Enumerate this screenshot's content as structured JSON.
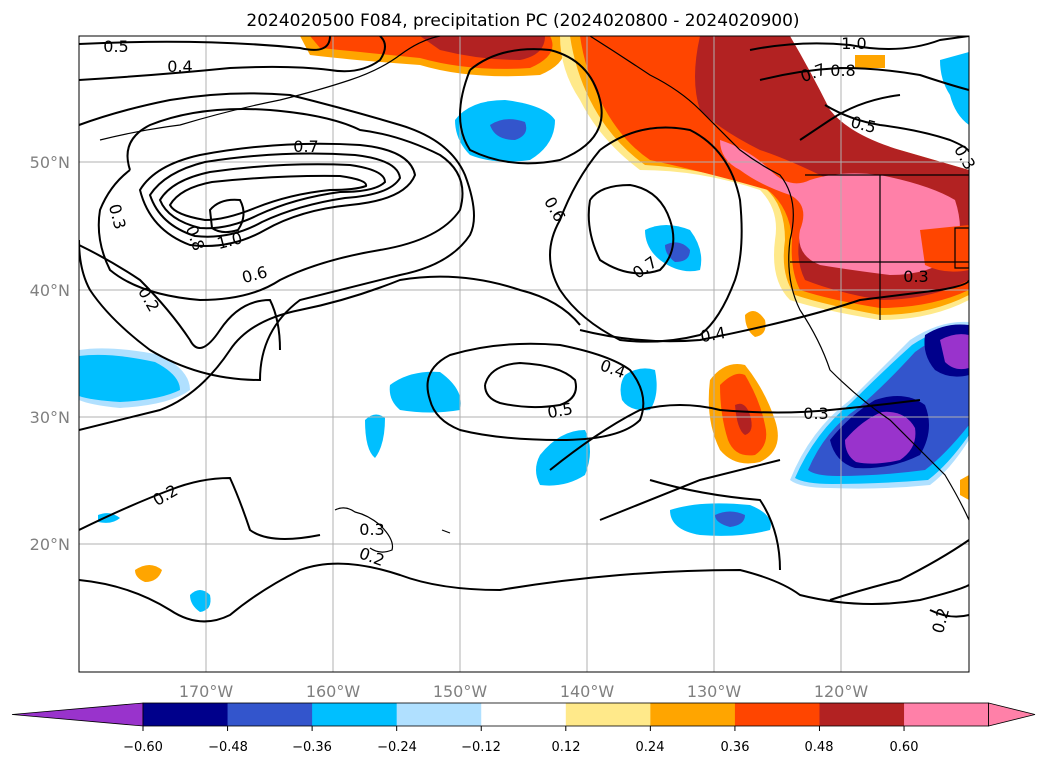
{
  "title": "2024020500 F084, precipitation PC (2024020800 - 2024020900)",
  "lat_labels": [
    "50°N",
    "40°N",
    "30°N",
    "20°N"
  ],
  "lon_labels": [
    "170°W",
    "160°W",
    "150°W",
    "140°W",
    "130°W",
    "120°W"
  ],
  "colorbar": {
    "ticks": [
      "−0.60",
      "−0.48",
      "−0.36",
      "−0.24",
      "−0.12",
      "0.12",
      "0.24",
      "0.36",
      "0.48",
      "0.60"
    ],
    "colors": [
      "#9933cc",
      "#00008b",
      "#3355cc",
      "#00bfff",
      "#b0e0ff",
      "#ffffff",
      "#ffe98a",
      "#ffa500",
      "#ff4500",
      "#b22222",
      "#ff80a8",
      "#ff80a8"
    ]
  },
  "contour_labels": [
    "0.5",
    "0.4",
    "0.7",
    "0.3",
    "0.8",
    "1.0",
    "0.6",
    "0.2",
    "0.6",
    "0.7",
    "0.4",
    "0.5",
    "0.4",
    "0.3",
    "0.3",
    "0.2",
    "0.2",
    "0.3",
    "1.0",
    "0.8",
    "0.7",
    "0.5",
    "0.3",
    "0.2"
  ]
}
